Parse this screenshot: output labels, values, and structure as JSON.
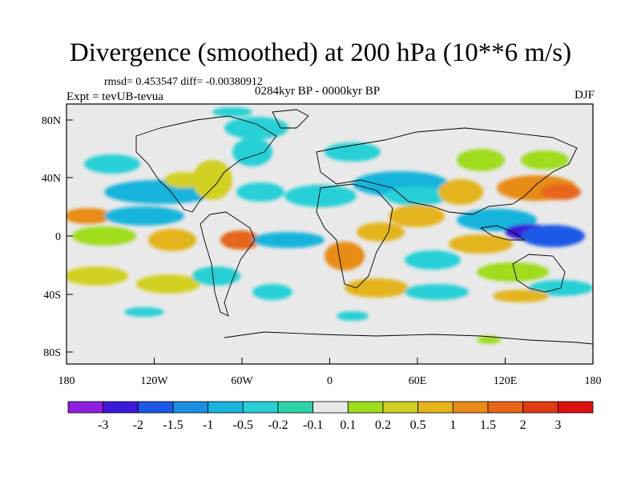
{
  "title": "Divergence (smoothed) at 200 hPa (10**6 m/s)",
  "stats": "rmsd= 0.453547 diff= -0.00380912",
  "experiment": "Expt = tevUB-tevua",
  "period": "0284kyr BP - 0000kyr BP",
  "season": "DJF",
  "lat_labels": [
    "80N",
    "40N",
    "0",
    "40S",
    "80S"
  ],
  "lon_labels": [
    "180",
    "120W",
    "60W",
    "0",
    "60E",
    "120E",
    "180"
  ],
  "colorbar": {
    "labels": [
      "-3",
      "-2",
      "-1.5",
      "-1",
      "-0.5",
      "-0.2",
      "-0.1",
      "0.1",
      "0.2",
      "0.5",
      "1",
      "1.5",
      "2",
      "3"
    ],
    "colors": [
      "#8f1fe0",
      "#3c18d8",
      "#1e58e6",
      "#1a8ee0",
      "#19b4dc",
      "#28d0d6",
      "#2ed2a8",
      "#e9e9e9",
      "#9edc1e",
      "#d2d024",
      "#e4b41a",
      "#e88c18",
      "#e6661a",
      "#e03a12",
      "#dc1010"
    ]
  }
}
